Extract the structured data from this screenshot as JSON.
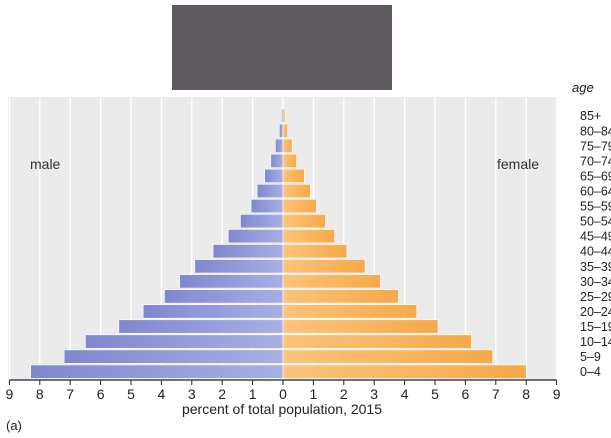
{
  "chart_data": {
    "type": "bar",
    "orientation": "population-pyramid",
    "categories": [
      "0–4",
      "5–9",
      "10–14",
      "15–19",
      "20–24",
      "25–29",
      "30–34",
      "35–39",
      "40–44",
      "45–49",
      "50–54",
      "55–59",
      "60–64",
      "65–69",
      "70–74",
      "75–79",
      "80–84",
      "85+"
    ],
    "series": [
      {
        "name": "male",
        "color": "#8b95d6",
        "values": [
          8.3,
          7.2,
          6.5,
          5.4,
          4.6,
          3.9,
          3.4,
          2.9,
          2.3,
          1.8,
          1.4,
          1.05,
          0.85,
          0.6,
          0.4,
          0.25,
          0.12,
          0.05
        ]
      },
      {
        "name": "female",
        "color": "#fbb65e",
        "values": [
          8.0,
          6.9,
          6.2,
          5.1,
          4.4,
          3.8,
          3.2,
          2.7,
          2.1,
          1.7,
          1.4,
          1.1,
          0.9,
          0.7,
          0.45,
          0.3,
          0.15,
          0.07
        ]
      }
    ],
    "xlabel": "percent of total population, 2015",
    "ylabel": "age",
    "xlim": [
      -9,
      9
    ],
    "xticks": [
      "9",
      "8",
      "7",
      "6",
      "5",
      "4",
      "3",
      "2",
      "1",
      "0",
      "1",
      "2",
      "3",
      "4",
      "5",
      "6",
      "7",
      "8",
      "9"
    ],
    "grid": "vertical",
    "legend": "inline-side-labels"
  },
  "labels": {
    "male": "male",
    "female": "female",
    "age_title": "age",
    "panel": "(a)"
  }
}
